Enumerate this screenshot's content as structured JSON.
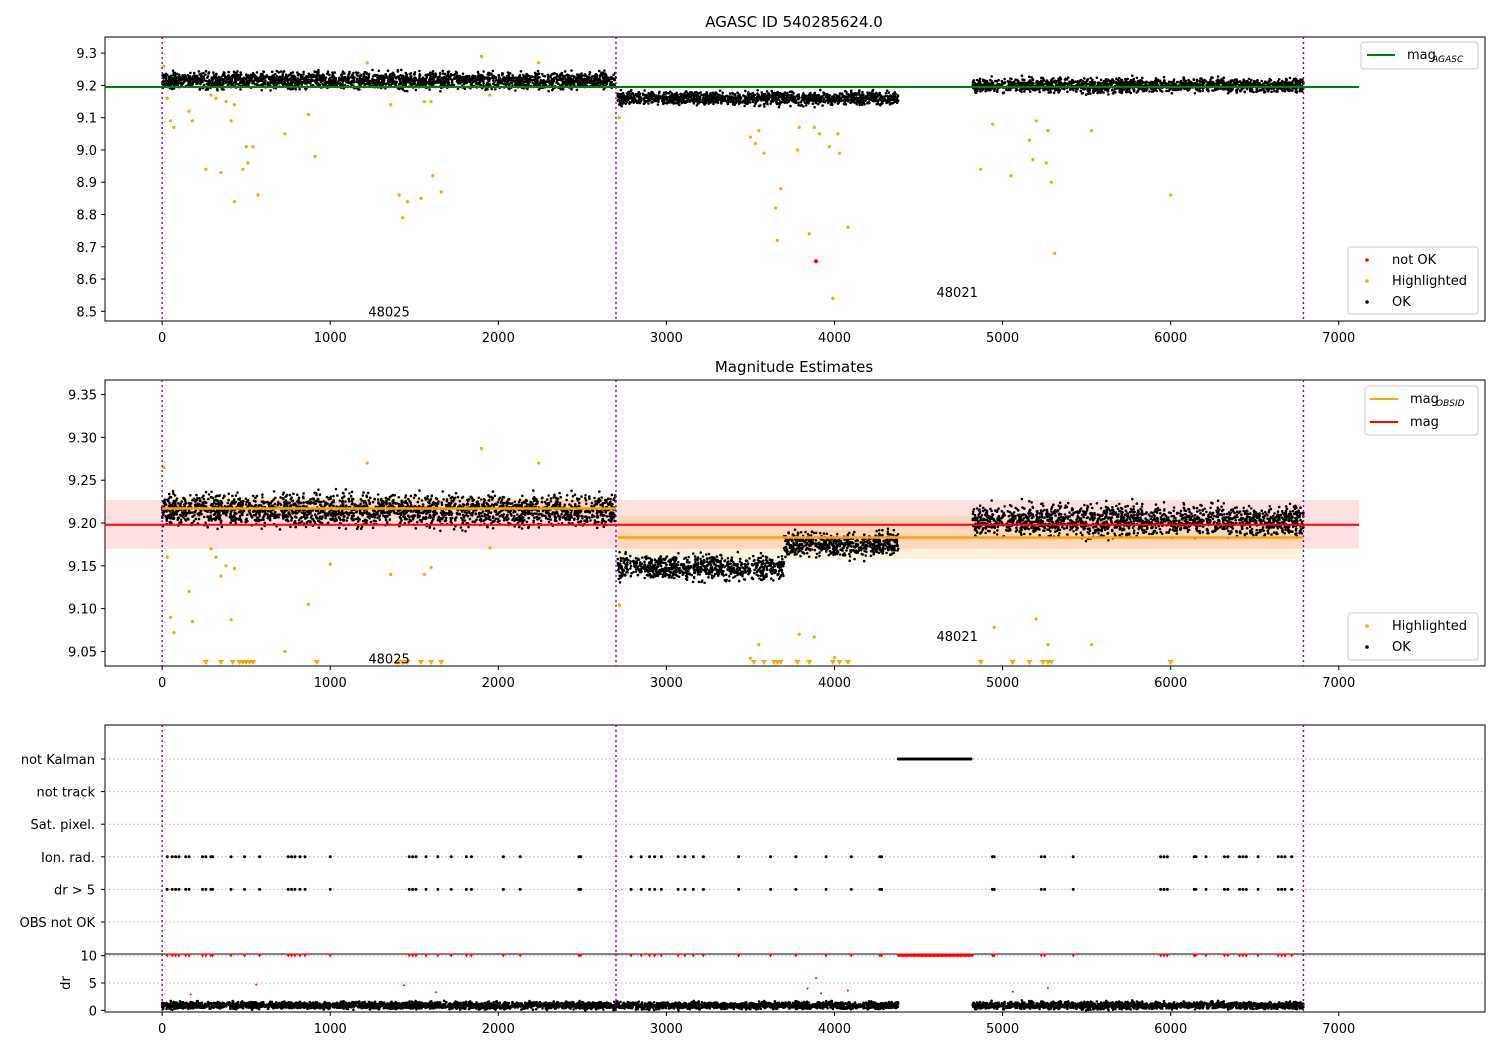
{
  "figure": {
    "title": "AGASC ID 540285624.0"
  },
  "chart_data": [
    {
      "type": "scatter",
      "title": "AGASC ID 540285624.0",
      "xlim": [
        -340,
        7870
      ],
      "ylim": [
        8.47,
        9.35
      ],
      "xticks": [
        0,
        1000,
        2000,
        3000,
        4000,
        5000,
        6000,
        7000
      ],
      "yticks": [
        8.5,
        8.6,
        8.7,
        8.8,
        8.9,
        9.0,
        9.1,
        9.2,
        9.3
      ],
      "ytick_labels": [
        "8.5",
        "8.6",
        "8.7",
        "8.8",
        "8.9",
        "9.0",
        "9.1",
        "9.2",
        "9.3"
      ],
      "obsid_boundaries": [
        0,
        2700,
        6790
      ],
      "obsid_annotations": [
        {
          "text": "48025",
          "x": 1350,
          "y": 8.5
        },
        {
          "text": "48021",
          "x": 4730,
          "y": 8.56
        }
      ],
      "hlines": [
        {
          "name": "mag_AGASC",
          "y": 9.195,
          "x_range": [
            -340,
            7120
          ],
          "color": "#008000"
        }
      ],
      "legend_top": {
        "position": "upper right",
        "entries": [
          {
            "label": "mag",
            "sub": "AGASC",
            "color": "#008000",
            "kind": "line"
          }
        ]
      },
      "legend_bottom": {
        "position": "lower right",
        "entries": [
          {
            "label": "not OK",
            "color": "#ff0000",
            "kind": "dot"
          },
          {
            "label": "Highlighted",
            "color": "#ffa500",
            "kind": "dot"
          },
          {
            "label": "OK",
            "color": "#000000",
            "kind": "dot"
          }
        ]
      },
      "ok_segments": [
        {
          "x0": 0,
          "x1": 2700,
          "center": 9.215,
          "spread": 0.022
        },
        {
          "x0": 2710,
          "x1": 4380,
          "center": 9.16,
          "spread": 0.017
        },
        {
          "x0": 4820,
          "x1": 6790,
          "center": 9.2,
          "spread": 0.018
        }
      ],
      "highlighted": [
        [
          10,
          9.26
        ],
        [
          30,
          9.16
        ],
        [
          50,
          9.09
        ],
        [
          70,
          9.07
        ],
        [
          160,
          9.12
        ],
        [
          180,
          9.09
        ],
        [
          260,
          8.94
        ],
        [
          290,
          9.17
        ],
        [
          320,
          9.16
        ],
        [
          350,
          8.93
        ],
        [
          380,
          9.15
        ],
        [
          410,
          9.09
        ],
        [
          430,
          9.14
        ],
        [
          430,
          8.84
        ],
        [
          480,
          8.94
        ],
        [
          500,
          9.01
        ],
        [
          510,
          8.96
        ],
        [
          540,
          9.01
        ],
        [
          570,
          8.86
        ],
        [
          730,
          9.05
        ],
        [
          870,
          9.11
        ],
        [
          910,
          8.98
        ],
        [
          1220,
          9.27
        ],
        [
          1360,
          9.14
        ],
        [
          1410,
          8.86
        ],
        [
          1430,
          8.79
        ],
        [
          1460,
          8.84
        ],
        [
          1540,
          8.85
        ],
        [
          1560,
          9.15
        ],
        [
          1600,
          9.15
        ],
        [
          1610,
          8.92
        ],
        [
          1660,
          8.87
        ],
        [
          1900,
          9.29
        ],
        [
          1950,
          9.17
        ],
        [
          2240,
          9.27
        ],
        [
          2720,
          9.1
        ],
        [
          3500,
          9.04
        ],
        [
          3530,
          9.02
        ],
        [
          3550,
          9.06
        ],
        [
          3580,
          8.99
        ],
        [
          3650,
          8.82
        ],
        [
          3660,
          8.72
        ],
        [
          3680,
          8.88
        ],
        [
          3780,
          9.0
        ],
        [
          3790,
          9.07
        ],
        [
          3850,
          8.74
        ],
        [
          3880,
          9.07
        ],
        [
          3910,
          9.05
        ],
        [
          3970,
          9.01
        ],
        [
          3990,
          8.54
        ],
        [
          4020,
          9.05
        ],
        [
          4030,
          8.99
        ],
        [
          4080,
          8.76
        ],
        [
          4870,
          8.94
        ],
        [
          4940,
          9.08
        ],
        [
          5050,
          8.92
        ],
        [
          5160,
          9.03
        ],
        [
          5180,
          8.97
        ],
        [
          5200,
          9.09
        ],
        [
          5260,
          8.96
        ],
        [
          5270,
          9.06
        ],
        [
          5290,
          8.9
        ],
        [
          5310,
          8.68
        ],
        [
          5530,
          9.06
        ],
        [
          6000,
          8.86
        ]
      ],
      "not_ok": [
        [
          3890,
          8.655
        ]
      ]
    },
    {
      "type": "scatter",
      "title": "Magnitude Estimates",
      "xlim": [
        -340,
        7870
      ],
      "ylim": [
        9.033,
        9.367
      ],
      "xticks": [
        0,
        1000,
        2000,
        3000,
        4000,
        5000,
        6000,
        7000
      ],
      "yticks": [
        9.05,
        9.1,
        9.15,
        9.2,
        9.25,
        9.3,
        9.35
      ],
      "ytick_labels": [
        "9.05",
        "9.10",
        "9.15",
        "9.20",
        "9.25",
        "9.30",
        "9.35"
      ],
      "obsid_boundaries": [
        0,
        2700,
        6790
      ],
      "obsid_annotations": [
        {
          "text": "48025",
          "x": 1350,
          "y": 9.042
        },
        {
          "text": "48021",
          "x": 4730,
          "y": 9.068
        }
      ],
      "mag_band": {
        "y": 9.198,
        "low": 9.17,
        "high": 9.227,
        "x_range": [
          -340,
          7120
        ],
        "color": "#ff0000"
      },
      "obsid_mags": [
        {
          "x_range": [
            0,
            2700
          ],
          "y": 9.217,
          "low": 9.205,
          "high": 9.23
        },
        {
          "x_range": [
            2710,
            6790
          ],
          "y": 9.183,
          "low": 9.158,
          "high": 9.208
        }
      ],
      "legend_top": {
        "position": "upper right",
        "entries": [
          {
            "label": "mag",
            "sub": "OBSID",
            "color": "#ffa500",
            "kind": "line"
          },
          {
            "label": "mag",
            "sub": "",
            "color": "#ff0000",
            "kind": "line"
          }
        ]
      },
      "legend_bottom": {
        "position": "lower right",
        "entries": [
          {
            "label": "Highlighted",
            "color": "#ffa500",
            "kind": "dot"
          },
          {
            "label": "OK",
            "color": "#000000",
            "kind": "dot"
          }
        ]
      },
      "ok_segments": [
        {
          "x0": 0,
          "x1": 2700,
          "center": 9.215,
          "spread": 0.016
        },
        {
          "x0": 2710,
          "x1": 3700,
          "center": 9.148,
          "spread": 0.012
        },
        {
          "x0": 3700,
          "x1": 4380,
          "center": 9.175,
          "spread": 0.012
        },
        {
          "x0": 4820,
          "x1": 6790,
          "center": 9.203,
          "spread": 0.015
        }
      ],
      "highlighted": [
        [
          10,
          9.265
        ],
        [
          30,
          9.16
        ],
        [
          50,
          9.09
        ],
        [
          70,
          9.072
        ],
        [
          160,
          9.12
        ],
        [
          180,
          9.085
        ],
        [
          290,
          9.17
        ],
        [
          320,
          9.16
        ],
        [
          350,
          9.138
        ],
        [
          380,
          9.15
        ],
        [
          410,
          9.087
        ],
        [
          430,
          9.147
        ],
        [
          730,
          9.05
        ],
        [
          870,
          9.105
        ],
        [
          1000,
          9.152
        ],
        [
          1220,
          9.27
        ],
        [
          1360,
          9.14
        ],
        [
          1560,
          9.14
        ],
        [
          1600,
          9.148
        ],
        [
          1900,
          9.287
        ],
        [
          1950,
          9.171
        ],
        [
          2240,
          9.27
        ],
        [
          2720,
          9.104
        ],
        [
          3500,
          9.042
        ],
        [
          3550,
          9.058
        ],
        [
          3790,
          9.07
        ],
        [
          3880,
          9.067
        ],
        [
          4000,
          9.043
        ],
        [
          4950,
          9.078
        ],
        [
          5200,
          9.088
        ],
        [
          5270,
          9.058
        ],
        [
          5530,
          9.058
        ]
      ],
      "highlighted_clipped": [
        260,
        350,
        420,
        460,
        480,
        500,
        520,
        540,
        920,
        1400,
        1430,
        1460,
        1540,
        1600,
        1660,
        3520,
        3580,
        3640,
        3660,
        3680,
        3780,
        3850,
        3990,
        4030,
        4080,
        4870,
        5060,
        5160,
        5240,
        5270,
        5290,
        6000
      ]
    },
    {
      "type": "scatter",
      "title": "",
      "xlim": [
        -340,
        7870
      ],
      "flag_rows": [
        "not Kalman",
        "not track",
        "Sat. pixel.",
        "Ion. rad.",
        "dr > 5",
        "OBS not OK"
      ],
      "flag_events": {
        "not Kalman": {
          "range": [
            4380,
            4820
          ]
        },
        "not track": [],
        "Sat. pixel.": [],
        "Ion. rad.": [
          30,
          60,
          80,
          100,
          140,
          160,
          240,
          260,
          290,
          300,
          410,
          490,
          580,
          750,
          770,
          790,
          820,
          850,
          1000,
          1470,
          1490,
          1510,
          1570,
          1640,
          1720,
          1810,
          1840,
          2030,
          2130,
          2480,
          2490,
          2790,
          2850,
          2900,
          2930,
          2970,
          3070,
          3110,
          3160,
          3220,
          3430,
          3620,
          3770,
          3950,
          4100,
          4270,
          4280,
          4940,
          4950,
          5230,
          5250,
          5420,
          5940,
          5960,
          5980,
          6140,
          6150,
          6210,
          6320,
          6340,
          6410,
          6430,
          6450,
          6520,
          6640,
          6660,
          6680,
          6720
        ],
        "dr > 5": [
          30,
          60,
          80,
          100,
          140,
          160,
          240,
          260,
          290,
          300,
          410,
          490,
          580,
          750,
          770,
          790,
          820,
          850,
          1000,
          1470,
          1490,
          1510,
          1570,
          1640,
          1720,
          1810,
          1840,
          2030,
          2130,
          2480,
          2490,
          2790,
          2850,
          2900,
          2930,
          2970,
          3070,
          3110,
          3160,
          3220,
          3430,
          3620,
          3770,
          3950,
          4100,
          4270,
          4280,
          4940,
          4950,
          5230,
          5250,
          5420,
          5940,
          5960,
          5980,
          6140,
          6150,
          6210,
          6320,
          6340,
          6410,
          6430,
          6450,
          6520,
          6640,
          6660,
          6680,
          6720
        ],
        "OBS not OK": []
      },
      "obsid_boundaries": [
        0,
        2700,
        6790
      ]
    },
    {
      "type": "scatter",
      "title": "",
      "ylabel": "dr",
      "xlim": [
        -340,
        7870
      ],
      "ylim": [
        -0.3,
        10.3
      ],
      "xticks": [
        0,
        1000,
        2000,
        3000,
        4000,
        5000,
        6000,
        7000
      ],
      "yticks": [
        0,
        5,
        10
      ],
      "ytick_labels": [
        "0",
        "5",
        "10"
      ],
      "obsid_boundaries": [
        0,
        2700,
        6790
      ],
      "ok_segments": [
        {
          "x0": 0,
          "x1": 4380,
          "center": 0.9,
          "spread": 0.55
        },
        {
          "x0": 4820,
          "x1": 6790,
          "center": 0.9,
          "spread": 0.55
        }
      ],
      "clipped_red_x": [
        30,
        60,
        80,
        100,
        140,
        160,
        240,
        260,
        290,
        300,
        410,
        490,
        580,
        750,
        770,
        790,
        820,
        850,
        1000,
        1470,
        1490,
        1510,
        1570,
        1640,
        1720,
        1810,
        1840,
        2030,
        2130,
        2480,
        2490,
        2790,
        2850,
        2900,
        2930,
        2970,
        3070,
        3110,
        3160,
        3220,
        3430,
        3620,
        3770,
        3950,
        4100,
        4270,
        4280,
        4940,
        4950,
        5230,
        5250,
        5420,
        5940,
        5960,
        5980,
        6140,
        6150,
        6210,
        6320,
        6340,
        6410,
        6430,
        6450,
        6520,
        6640,
        6660,
        6680,
        6720
      ],
      "clipped_red_range": [
        4380,
        4820
      ],
      "red_points": [
        [
          170,
          2.9
        ],
        [
          560,
          4.7
        ],
        [
          1440,
          4.6
        ],
        [
          1630,
          3.3
        ],
        [
          3840,
          4.0
        ],
        [
          3890,
          5.9
        ],
        [
          3920,
          3.1
        ],
        [
          4080,
          3.6
        ],
        [
          5060,
          3.4
        ],
        [
          5270,
          4.1
        ]
      ]
    }
  ]
}
